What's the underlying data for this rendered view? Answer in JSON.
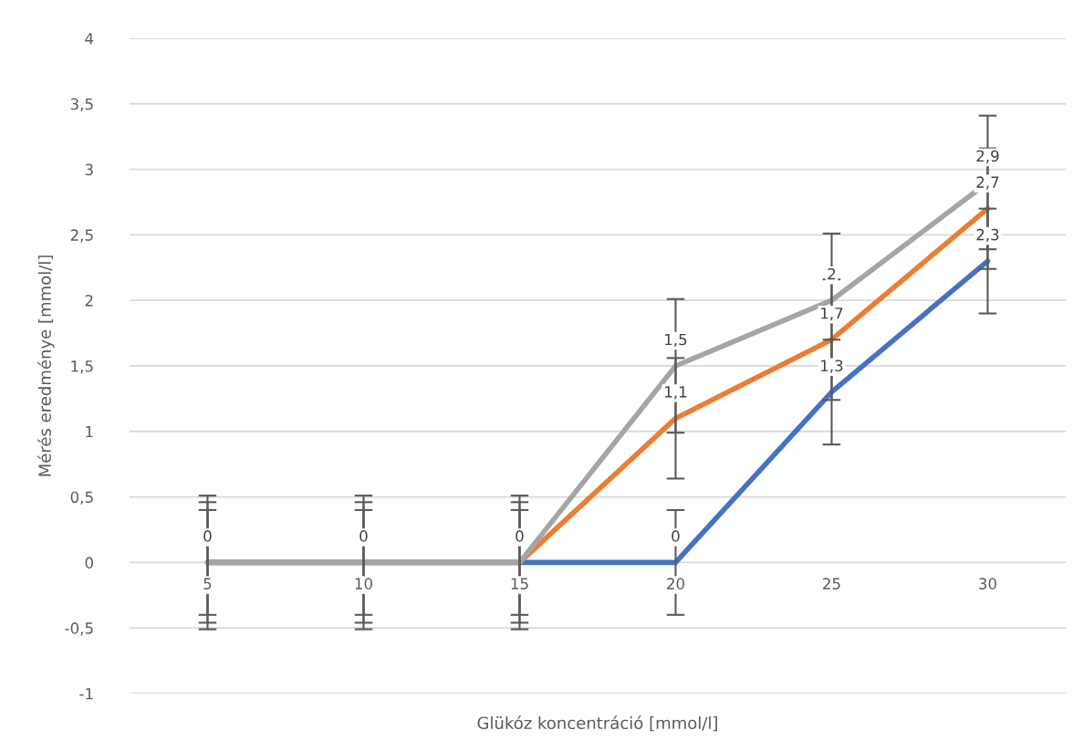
{
  "chart_data": {
    "type": "line",
    "xlabel": "Glükóz koncentráció [mmol/l]",
    "ylabel": "Mérés eredménye [mmol/l]",
    "categories": [
      "5",
      "10",
      "15",
      "20",
      "25",
      "30"
    ],
    "series": [
      {
        "color": "#4472c4",
        "values": [
          0,
          0,
          0,
          0,
          1.3,
          2.3
        ],
        "errors": [
          0.4,
          0.4,
          0.4,
          0.4,
          0.4,
          0.4
        ],
        "value_labels": [
          "0",
          "0",
          "0",
          "0",
          "1,3",
          "2,3"
        ]
      },
      {
        "color": "#ed7d31",
        "values": [
          0,
          0,
          0,
          1.1,
          1.7,
          2.7
        ],
        "errors": [
          0.46,
          0.46,
          0.46,
          0.46,
          0.46,
          0.46
        ],
        "value_labels": [
          null,
          null,
          null,
          "1,1",
          "1,7",
          "2,7"
        ]
      },
      {
        "color": "#a5a5a5",
        "values": [
          0,
          0,
          0,
          1.5,
          2,
          2.9
        ],
        "errors": [
          0.51,
          0.51,
          0.51,
          0.51,
          0.51,
          0.51
        ],
        "value_labels": [
          null,
          null,
          null,
          "1,5",
          "2",
          "2,9"
        ]
      }
    ],
    "ylim": [
      -1,
      4
    ],
    "yticks": [
      -1,
      {
        "value": -0.5,
        "label": "-0,5"
      },
      0,
      {
        "value": 0.5,
        "label": "0,5"
      },
      1,
      {
        "value": 1.5,
        "label": "1,5"
      },
      2,
      {
        "value": 2.5,
        "label": "2,5"
      },
      3,
      {
        "value": 3.5,
        "label": "3,5"
      },
      4
    ],
    "grid": "y",
    "marker": "none",
    "line_style": "solid",
    "legend": false
  }
}
